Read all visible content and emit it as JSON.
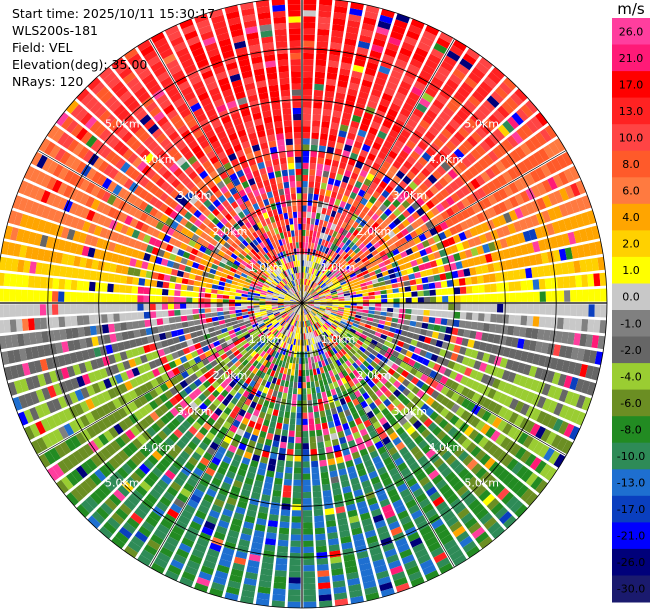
{
  "header": {
    "start_time": "Start time: 2025/10/11 15:30:17",
    "instrument": "WLS200s-181",
    "field": "Field: VEL",
    "elevation": "Elevation(deg): 35.00",
    "nrays": "NRays: 120"
  },
  "colorbar": {
    "unit": "m/s",
    "ticks": [
      "26.0",
      "21.0",
      "17.0",
      "13.0",
      "10.0",
      "8.0",
      "6.0",
      "4.0",
      "2.0",
      "1.0",
      "0.0",
      "-1.0",
      "-2.0",
      "-4.0",
      "-6.0",
      "-8.0",
      "-10.0",
      "-13.0",
      "-17.0",
      "-21.0",
      "-26.0",
      "-30.0"
    ],
    "colors": [
      "#ff3e9e",
      "#ff1a77",
      "#ff0000",
      "#ff2222",
      "#ff4444",
      "#ff5a2a",
      "#ff7a40",
      "#ffa500",
      "#ffd100",
      "#ffff00",
      "#c8c8c8",
      "#808080",
      "#666666",
      "#9acd32",
      "#6b8e23",
      "#228b22",
      "#2e8b57",
      "#1e6fd0",
      "#0a3fbf",
      "#0000ff",
      "#00007a",
      "#1a1a6e"
    ]
  },
  "chart_data": {
    "type": "heatmap",
    "projection": "polar-ppi",
    "field": "VEL",
    "units": "m/s",
    "elevation_deg": 35.0,
    "n_rays": 120,
    "range_rings_km": [
      "1.0km",
      "2.0km",
      "3.0km",
      "4.0km",
      "5.0km"
    ],
    "max_range_km": 6.0,
    "vmin": -30.0,
    "vmax": 30.0,
    "dominant_pattern": {
      "north_half": "positive velocities (yellow / orange / red)",
      "south_half": "negative velocities (green / blue)",
      "near_center": "mixed / near zero (gray, olive)"
    }
  }
}
